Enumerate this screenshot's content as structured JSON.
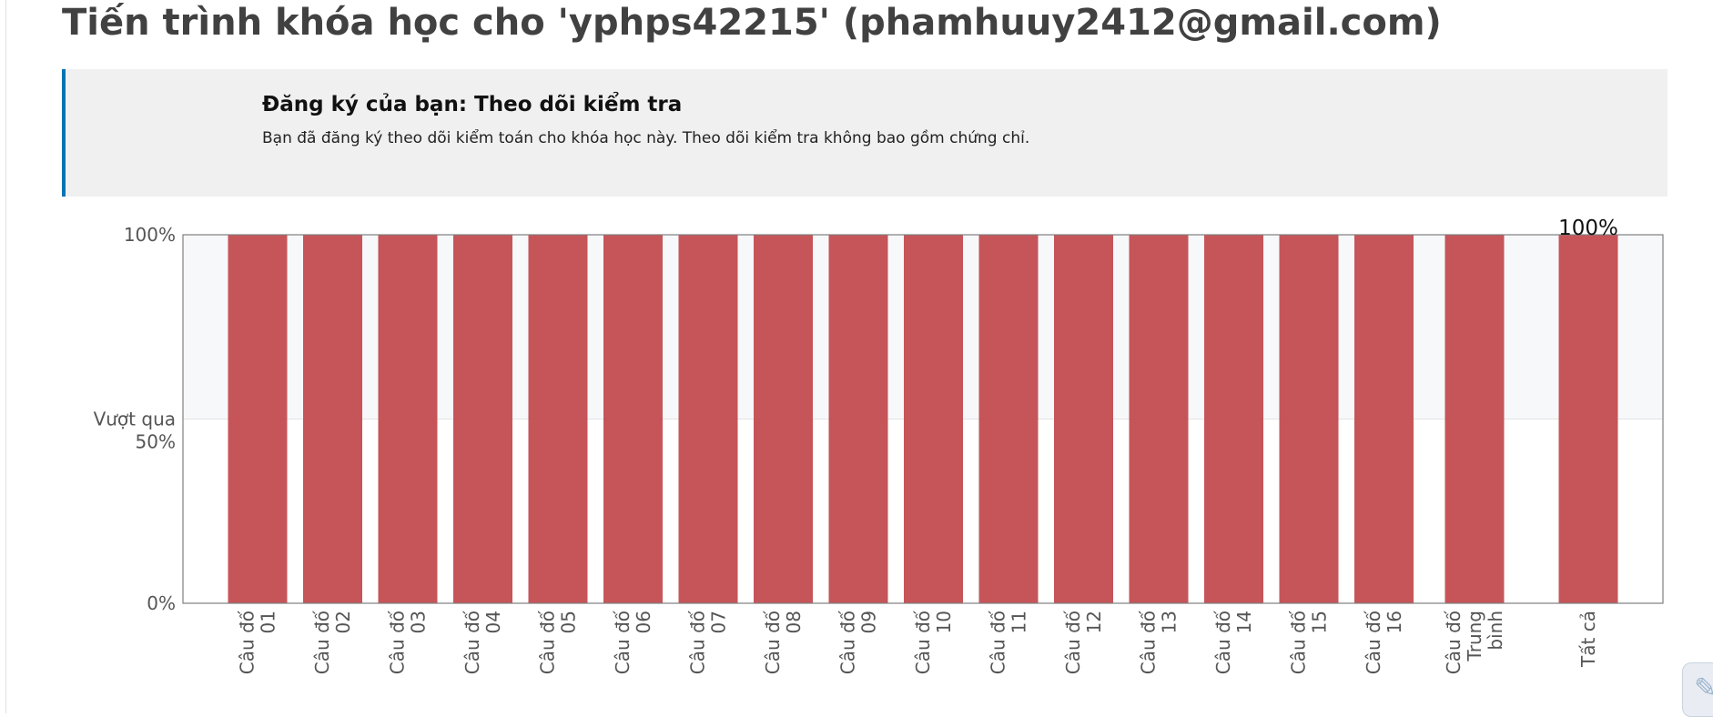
{
  "page_title": "Tiến trình khóa học cho 'yphps42215' (phamhuuy2412@gmail.com)",
  "enrollment": {
    "title": "Đăng ký của bạn: Theo dõi kiểm tra",
    "message": "Bạn đã đăng ký theo dõi kiểm toán cho khóa học này. Theo dõi kiểm tra không bao gồm chứng chỉ."
  },
  "chart_data": {
    "type": "bar",
    "categories": [
      [
        "Câu đố",
        "01"
      ],
      [
        "Câu đố",
        "02"
      ],
      [
        "Câu đố",
        "03"
      ],
      [
        "Câu đố",
        "04"
      ],
      [
        "Câu đố",
        "05"
      ],
      [
        "Câu đố",
        "06"
      ],
      [
        "Câu đố",
        "07"
      ],
      [
        "Câu đố",
        "08"
      ],
      [
        "Câu đố",
        "09"
      ],
      [
        "Câu đố",
        "10"
      ],
      [
        "Câu đố",
        "11"
      ],
      [
        "Câu đố",
        "12"
      ],
      [
        "Câu đố",
        "13"
      ],
      [
        "Câu đố",
        "14"
      ],
      [
        "Câu đố",
        "15"
      ],
      [
        "Câu đố",
        "16"
      ],
      [
        "Câu đố",
        "Trung",
        "bình"
      ],
      [
        "Tất cả"
      ]
    ],
    "values": [
      100,
      100,
      100,
      100,
      100,
      100,
      100,
      100,
      100,
      100,
      100,
      100,
      100,
      100,
      100,
      100,
      100,
      100
    ],
    "ylim": [
      0,
      100
    ],
    "y_ticks": [
      {
        "value": 100,
        "label": "100%"
      },
      {
        "value": 50,
        "label": "Vượt qua 50%"
      },
      {
        "value": 0,
        "label": "0%"
      }
    ],
    "pass_threshold": 50,
    "total_label": "100%",
    "bar_color": "#c44e52",
    "pass_band_color": "#f7f8fa"
  },
  "badge_icon": "edit-icon"
}
